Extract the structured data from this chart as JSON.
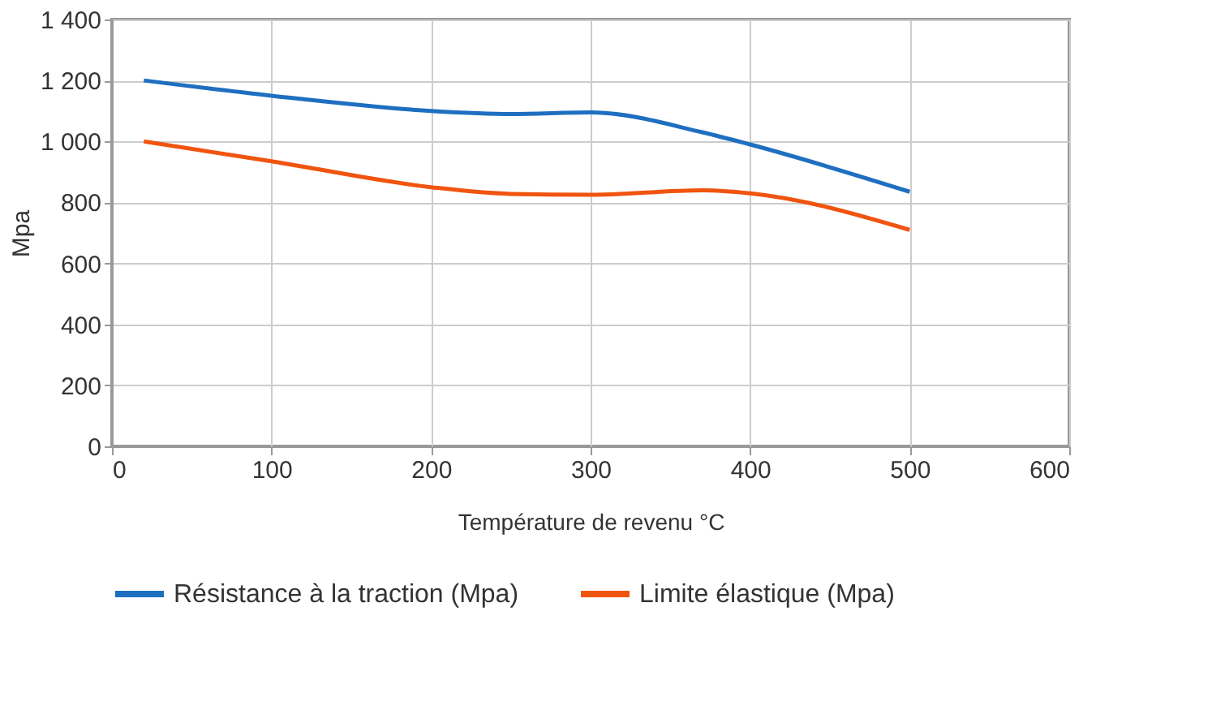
{
  "chart_data": {
    "type": "line",
    "xlabel": "Température de revenu °C",
    "ylabel": "Mpa",
    "x": [
      20,
      100,
      200,
      250,
      300,
      370,
      400,
      500
    ],
    "series": [
      {
        "name": "Résistance à la traction (Mpa)",
        "color": "#1f6fc0",
        "values": [
          1200,
          1150,
          1100,
          1090,
          1095,
          1030,
          990,
          835
        ]
      },
      {
        "name": "Limite élastique (Mpa)",
        "color": "#f0540f",
        "values": [
          1000,
          935,
          850,
          828,
          825,
          840,
          830,
          710
        ]
      }
    ],
    "xlim": [
      0,
      600
    ],
    "xticks": [
      0,
      100,
      200,
      300,
      400,
      500,
      600
    ],
    "ylim": [
      0,
      1400
    ],
    "yticks": [
      0,
      200,
      400,
      600,
      800,
      {
        "value": 1000,
        "label": "1 000"
      },
      {
        "value": 1200,
        "label": "1 200"
      },
      {
        "value": 1400,
        "label": "1 400"
      }
    ],
    "grid": true,
    "legend": "bottom",
    "marker": "none",
    "line_style": "solid"
  }
}
